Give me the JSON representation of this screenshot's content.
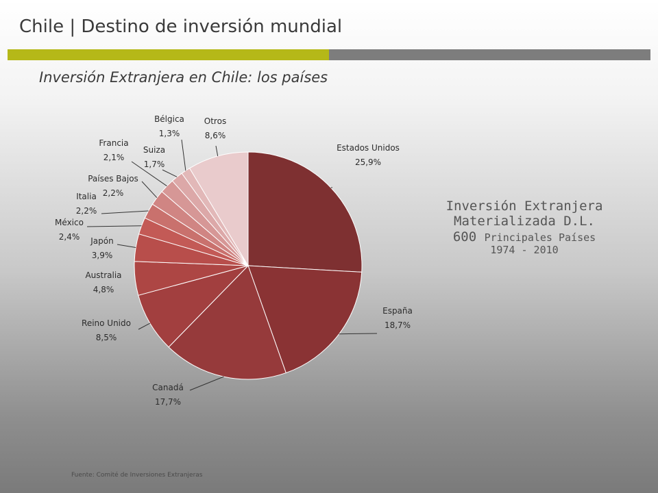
{
  "slide": {
    "title": "Chile | Destino de inversión mundial",
    "subtitle": "Inversión Extranjera en Chile: los países",
    "source": "Fuente: Comité de Inversiones Extranjeras"
  },
  "side_note": {
    "line1": "Inversión Extranjera",
    "line2": "Materializada D.L.",
    "line3_main": "600",
    "line3_small": "Principales Países",
    "line4": "1974 - 2010"
  },
  "colors": {
    "accent_bar": "#b5b818",
    "gray_bar": "#7d7d7d"
  },
  "chart_data": {
    "type": "pie",
    "title": "",
    "slices": [
      {
        "label": "Estados Unidos",
        "value_label": "25,9%",
        "value": 25.9,
        "color": "#7e3031"
      },
      {
        "label": "España",
        "value_label": "18,7%",
        "value": 18.7,
        "color": "#8a3334"
      },
      {
        "label": "Canadá",
        "value_label": "17,7%",
        "value": 17.7,
        "color": "#963a3b"
      },
      {
        "label": "Reino Unido",
        "value_label": "8,5%",
        "value": 8.5,
        "color": "#a23f3f"
      },
      {
        "label": "Australia",
        "value_label": "4,8%",
        "value": 4.8,
        "color": "#ad4644"
      },
      {
        "label": "Japón",
        "value_label": "3,9%",
        "value": 3.9,
        "color": "#b84e4b"
      },
      {
        "label": "México",
        "value_label": "2,4%",
        "value": 2.4,
        "color": "#c35a56"
      },
      {
        "label": "Italia",
        "value_label": "2,2%",
        "value": 2.2,
        "color": "#c9716d"
      },
      {
        "label": "Países Bajos",
        "value_label": "2,2%",
        "value": 2.2,
        "color": "#d08583"
      },
      {
        "label": "Francia",
        "value_label": "2,1%",
        "value": 2.1,
        "color": "#d69796"
      },
      {
        "label": "Suiza",
        "value_label": "1,7%",
        "value": 1.7,
        "color": "#dca8a8"
      },
      {
        "label": "Bélgica",
        "value_label": "1,3%",
        "value": 1.3,
        "color": "#e2b8b8"
      },
      {
        "label": "Otros",
        "value_label": "8,6%",
        "value": 8.6,
        "color": "#e9cbcc"
      }
    ]
  }
}
